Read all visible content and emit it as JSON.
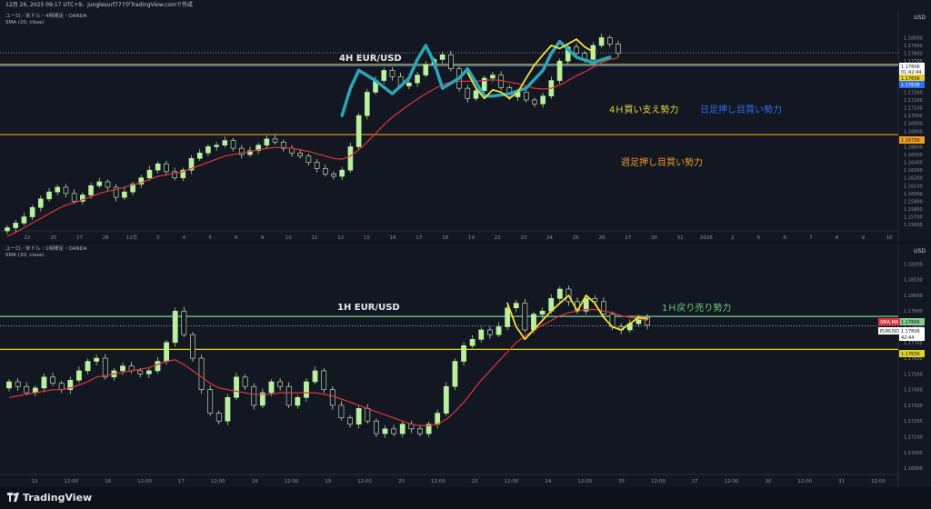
{
  "header": {
    "text": "12月 26, 2025 09:17 UTC+9、junglesurf777がTradingView.comで作成"
  },
  "footer": {
    "brand": "TradingView"
  },
  "colors": {
    "background": "#131722",
    "candle_up": "#b9f0a0",
    "candle_down": "#d8f2c5",
    "sma": "#e0343a",
    "orange_line": "#f0a020",
    "yellow_line": "#e6d020",
    "green_line": "#7fcf8f",
    "blue_line": "#2f6cf0",
    "wave_teal": "#2aa6b8",
    "wave_yellow": "#f0e040",
    "text_yellow": "#e8d43a",
    "text_blue": "#2f6cf0",
    "text_orange": "#e89a2a",
    "text_green": "#6fcf7a"
  },
  "chart_data": [
    {
      "type": "candlestick",
      "symbol_line": "ユーロ／米ドル・4時間足・OANDA",
      "indicator_line": "SMA (20, close)",
      "currency": "USD",
      "title": "4H EUR/USD",
      "ylim": [
        1.1552,
        1.1818
      ],
      "y_ticks": [
        "1.18000",
        "1.17900",
        "1.17800",
        "1.17700",
        "1.17600",
        "1.17500",
        "1.17400",
        "1.17300",
        "1.17200",
        "1.17100",
        "1.17000",
        "1.16900",
        "1.16800",
        "1.16700",
        "1.16600",
        "1.16500",
        "1.16400",
        "1.16300",
        "1.16200",
        "1.16100",
        "1.16000",
        "1.15900",
        "1.15800",
        "1.15700",
        "1.15600"
      ],
      "x_ticks": [
        "22",
        "25",
        "27",
        "28",
        "12月",
        "3",
        "4",
        "5",
        "6",
        "9",
        "10",
        "11",
        "12",
        "15",
        "16",
        "17",
        "18",
        "19",
        "22",
        "23",
        "24",
        "25",
        "26",
        "27",
        "30",
        "31",
        "2026",
        "2",
        "5",
        "6",
        "7",
        "8",
        "9",
        "10"
      ],
      "price_labels": [
        {
          "text": "1.17806",
          "bg": "#ffffff",
          "fg": "#131722"
        },
        {
          "text": "01:42:44",
          "bg": "#ffffff",
          "fg": "#131722"
        },
        {
          "text": "1.17656",
          "bg": "#e6d020",
          "fg": "#131722"
        },
        {
          "text": "1.17638",
          "bg": "#2f6cf0",
          "fg": "#ffffff"
        },
        {
          "text": "1.16756",
          "bg": "#f0a020",
          "fg": "#131722"
        }
      ],
      "levels": [
        {
          "name": "current",
          "value": 1.17806
        },
        {
          "name": "yellow",
          "value": 1.17656
        },
        {
          "name": "blue",
          "value": 1.17638
        },
        {
          "name": "orange",
          "value": 1.16756
        }
      ],
      "annotations": [
        {
          "text": "4Ｈ買い支え勢力",
          "color": "#e8d43a"
        },
        {
          "text": "日足押し目買い勢力",
          "color": "#2f6cf0"
        },
        {
          "text": "週足押し目買い勢力",
          "color": "#e89a2a"
        }
      ],
      "close_path": [
        1.1556,
        1.1562,
        1.157,
        1.1582,
        1.1593,
        1.1602,
        1.1608,
        1.16,
        1.159,
        1.1598,
        1.161,
        1.1615,
        1.1608,
        1.1595,
        1.1602,
        1.1612,
        1.162,
        1.163,
        1.1638,
        1.1628,
        1.162,
        1.163,
        1.1645,
        1.1652,
        1.166,
        1.1662,
        1.1668,
        1.1658,
        1.165,
        1.1655,
        1.1662,
        1.167,
        1.1666,
        1.1658,
        1.1652,
        1.1648,
        1.164,
        1.1632,
        1.1625,
        1.1622,
        1.163,
        1.166,
        1.17,
        1.173,
        1.1745,
        1.1758,
        1.175,
        1.1738,
        1.1742,
        1.1752,
        1.1765,
        1.1772,
        1.1778,
        1.176,
        1.1735,
        1.1722,
        1.1732,
        1.1748,
        1.1752,
        1.1736,
        1.1724,
        1.173,
        1.172,
        1.1715,
        1.1725,
        1.1745,
        1.177,
        1.1788,
        1.178,
        1.1772,
        1.179,
        1.18,
        1.1792,
        1.178
      ],
      "sma_path": [
        1.1545,
        1.155,
        1.1556,
        1.1562,
        1.1568,
        1.1574,
        1.158,
        1.1585,
        1.1588,
        1.1592,
        1.1596,
        1.16,
        1.1603,
        1.1605,
        1.1608,
        1.1611,
        1.1614,
        1.1618,
        1.1622,
        1.1624,
        1.1626,
        1.1628,
        1.1632,
        1.1636,
        1.164,
        1.1644,
        1.1648,
        1.165,
        1.1652,
        1.1654,
        1.1656,
        1.1658,
        1.1659,
        1.1659,
        1.1658,
        1.1656,
        1.1654,
        1.1651,
        1.1648,
        1.1645,
        1.1644,
        1.1648,
        1.1656,
        1.1666,
        1.1677,
        1.1688,
        1.1698,
        1.1706,
        1.1714,
        1.1721,
        1.1728,
        1.1734,
        1.174,
        1.1743,
        1.1744,
        1.1744,
        1.1744,
        1.1745,
        1.1746,
        1.1745,
        1.1743,
        1.1741,
        1.1738,
        1.1735,
        1.1734,
        1.1735,
        1.1739,
        1.1745,
        1.1751,
        1.1756,
        1.1762,
        1.1768,
        1.1772,
        1.1774
      ],
      "wave_teal": [
        [
          40,
          1.17
        ],
        [
          41,
          1.1735
        ],
        [
          42,
          1.1758
        ],
        [
          44,
          1.1745
        ],
        [
          46,
          1.1728
        ],
        [
          48,
          1.1748
        ],
        [
          49,
          1.1772
        ],
        [
          50,
          1.179
        ],
        [
          51,
          1.1768
        ],
        [
          52,
          1.1735
        ],
        [
          54,
          1.1748
        ],
        [
          55,
          1.176
        ],
        [
          57,
          1.1725
        ],
        [
          58,
          1.1725
        ],
        [
          60,
          1.1728
        ],
        [
          62,
          1.1735
        ],
        [
          64,
          1.1758
        ],
        [
          65,
          1.178
        ],
        [
          66,
          1.1795
        ],
        [
          67,
          1.1785
        ],
        [
          68,
          1.1775
        ],
        [
          70,
          1.1768
        ],
        [
          72,
          1.1775
        ]
      ],
      "wave_yellow": [
        [
          55,
          1.1755
        ],
        [
          56,
          1.1735
        ],
        [
          57,
          1.1722
        ],
        [
          58,
          1.1733
        ],
        [
          59,
          1.173
        ],
        [
          60,
          1.1722
        ],
        [
          61,
          1.173
        ],
        [
          62,
          1.1748
        ],
        [
          63,
          1.1765
        ],
        [
          64,
          1.1778
        ],
        [
          65,
          1.179
        ],
        [
          66,
          1.1786
        ],
        [
          67,
          1.1792
        ],
        [
          68,
          1.1798
        ],
        [
          69,
          1.1788
        ],
        [
          70,
          1.1782
        ]
      ]
    },
    {
      "type": "candlestick",
      "symbol_line": "ユーロ／米ドル・1時間足・OANDA",
      "indicator_line": "SMA (20, close)",
      "currency": "USD",
      "title": "1H EUR/USD",
      "ylim": [
        1.1686,
        1.1826
      ],
      "y_ticks": [
        "1.18200",
        "1.18100",
        "1.18000",
        "1.17900",
        "1.17800",
        "1.17700",
        "1.17600",
        "1.17500",
        "1.17400",
        "1.17300",
        "1.17200",
        "1.17100",
        "1.17000",
        "1.16900"
      ],
      "x_ticks": [
        "13",
        "12:00",
        "16",
        "12:00",
        "17",
        "12:00",
        "18",
        "12:00",
        "19",
        "12:00",
        "20",
        "12:00",
        "23",
        "12:00",
        "24",
        "12:00",
        "25",
        "12:00",
        "27",
        "12:00",
        "30",
        "12:00",
        "31",
        "12:00"
      ],
      "price_labels": [
        {
          "text": "1.17866",
          "bg": "#7fcf8f",
          "fg": "#131722"
        },
        {
          "text": "1.17806",
          "bg": "#ffffff",
          "fg": "#131722"
        },
        {
          "text": "42:44",
          "bg": "#ffffff",
          "fg": "#131722"
        },
        {
          "text": "1.17656",
          "bg": "#e6d020",
          "fg": "#131722"
        }
      ],
      "series_tags": [
        "SMA,MA",
        "EURUSD"
      ],
      "levels": [
        {
          "name": "green",
          "value": 1.17866
        },
        {
          "name": "current",
          "value": 1.17806
        },
        {
          "name": "yellow",
          "value": 1.17656
        }
      ],
      "annotations": [
        {
          "text": "1Ｈ戻り売り勢力",
          "color": "#6fcf7a"
        }
      ],
      "close_path": [
        1.1745,
        1.1742,
        1.1738,
        1.1741,
        1.1748,
        1.1744,
        1.174,
        1.1746,
        1.1752,
        1.1758,
        1.176,
        1.1748,
        1.1752,
        1.1755,
        1.1752,
        1.175,
        1.1752,
        1.1758,
        1.177,
        1.179,
        1.1775,
        1.176,
        1.174,
        1.1725,
        1.172,
        1.1735,
        1.1748,
        1.1742,
        1.173,
        1.1738,
        1.1745,
        1.1742,
        1.173,
        1.1735,
        1.1745,
        1.1752,
        1.174,
        1.173,
        1.1722,
        1.1718,
        1.1728,
        1.172,
        1.1712,
        1.1715,
        1.1712,
        1.1718,
        1.1715,
        1.1712,
        1.1718,
        1.1725,
        1.1742,
        1.1758,
        1.1768,
        1.1772,
        1.1778,
        1.1775,
        1.178,
        1.1792,
        1.1795,
        1.1778,
        1.1788,
        1.179,
        1.1798,
        1.1804,
        1.1796,
        1.179,
        1.1798,
        1.1796,
        1.1788,
        1.178,
        1.1778,
        1.1782,
        1.1786,
        1.1781
      ],
      "sma_path": [
        1.1735,
        1.1736,
        1.1737,
        1.1738,
        1.1739,
        1.174,
        1.174,
        1.1741,
        1.1743,
        1.1745,
        1.1748,
        1.1749,
        1.175,
        1.1751,
        1.1752,
        1.1753,
        1.1754,
        1.1756,
        1.1758,
        1.1759,
        1.1756,
        1.1752,
        1.1748,
        1.1744,
        1.1741,
        1.174,
        1.1739,
        1.1738,
        1.1737,
        1.1737,
        1.1737,
        1.1738,
        1.1738,
        1.1738,
        1.1738,
        1.1738,
        1.1737,
        1.1736,
        1.1734,
        1.1732,
        1.173,
        1.1728,
        1.1726,
        1.1724,
        1.1722,
        1.172,
        1.1718,
        1.1717,
        1.1717,
        1.1718,
        1.1721,
        1.1726,
        1.1732,
        1.1739,
        1.1746,
        1.1752,
        1.1758,
        1.1764,
        1.177,
        1.1774,
        1.1778,
        1.1781,
        1.1784,
        1.1787,
        1.1789,
        1.179,
        1.1791,
        1.1791,
        1.179,
        1.1789,
        1.1787,
        1.1786,
        1.1785,
        1.1784
      ],
      "wave_yellow": [
        [
          57,
          1.1795
        ],
        [
          58,
          1.178
        ],
        [
          59,
          1.1772
        ],
        [
          60,
          1.1778
        ],
        [
          62,
          1.179
        ],
        [
          64,
          1.18
        ],
        [
          65,
          1.179
        ],
        [
          66,
          1.18
        ],
        [
          67,
          1.1795
        ],
        [
          68,
          1.1786
        ],
        [
          69,
          1.178
        ],
        [
          70,
          1.1778
        ],
        [
          71,
          1.1782
        ],
        [
          72,
          1.1786
        ],
        [
          73,
          1.1785
        ]
      ]
    }
  ]
}
